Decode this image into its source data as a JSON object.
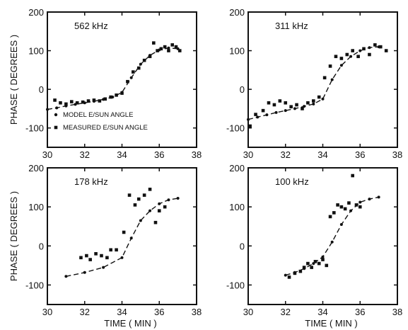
{
  "chart_data": [
    {
      "type": "scatter",
      "label": "562 kHz",
      "ylabel": "PHASE ( DEGREES )",
      "xlabel": "",
      "xlim": [
        30,
        38
      ],
      "ylim": [
        -150,
        200
      ],
      "xticks": [
        "30",
        "32",
        "34",
        "36",
        "38"
      ],
      "yticks": [
        "200",
        "100",
        "0",
        "-100"
      ],
      "legend": {
        "placement": "bottom-left",
        "entries": [
          "MODEL E/SUN ANGLE",
          "MEASURED E/SUN ANGLE"
        ]
      },
      "series": [
        {
          "name": "MODEL E/SUN ANGLE",
          "marker": "dot",
          "x": [
            30.0,
            30.5,
            31.0,
            31.5,
            32.0,
            32.5,
            33.0,
            33.5,
            34.0,
            34.5,
            35.0,
            35.5,
            36.0,
            36.5,
            37.0
          ],
          "y": [
            -52,
            -48,
            -43,
            -39,
            -35,
            -31,
            -26,
            -20,
            -8,
            30,
            65,
            88,
            102,
            107,
            105
          ]
        },
        {
          "name": "MEASURED E/SUN ANGLE",
          "marker": "square",
          "x": [
            30.4,
            30.7,
            31.0,
            31.3,
            31.6,
            31.9,
            32.2,
            32.5,
            32.8,
            33.1,
            33.4,
            33.7,
            34.0,
            34.3,
            34.6,
            34.9,
            35.2,
            35.5,
            35.7,
            35.9,
            36.1,
            36.3,
            36.5,
            36.7,
            36.9,
            37.1
          ],
          "y": [
            -28,
            -35,
            -38,
            -32,
            -35,
            -33,
            -30,
            -28,
            -30,
            -25,
            -20,
            -15,
            -10,
            20,
            45,
            55,
            75,
            85,
            120,
            100,
            105,
            110,
            100,
            115,
            110,
            100
          ]
        }
      ]
    },
    {
      "type": "scatter",
      "label": "311 kHz",
      "ylabel": "",
      "xlabel": "",
      "xlim": [
        30,
        38
      ],
      "ylim": [
        -150,
        200
      ],
      "xticks": [
        "30",
        "32",
        "34",
        "36",
        "38"
      ],
      "yticks": [
        "200",
        "100",
        "0",
        "-100"
      ],
      "series": [
        {
          "name": "MODEL E/SUN ANGLE",
          "marker": "dot",
          "x": [
            30.0,
            30.5,
            31.0,
            31.5,
            32.0,
            32.5,
            33.0,
            33.5,
            34.0,
            34.5,
            35.0,
            35.5,
            36.0,
            36.5,
            37.0
          ],
          "y": [
            -78,
            -72,
            -66,
            -60,
            -55,
            -50,
            -44,
            -38,
            -25,
            25,
            62,
            85,
            100,
            108,
            110
          ]
        },
        {
          "name": "MEASURED E/SUN ANGLE",
          "marker": "square",
          "x": [
            30.1,
            30.4,
            30.8,
            31.1,
            31.4,
            31.7,
            32.0,
            32.3,
            32.6,
            32.9,
            33.2,
            33.5,
            33.8,
            34.1,
            34.4,
            34.7,
            35.0,
            35.3,
            35.6,
            35.9,
            36.2,
            36.5,
            36.8,
            37.1,
            37.4
          ],
          "y": [
            -95,
            -65,
            -55,
            -35,
            -40,
            -30,
            -35,
            -45,
            -40,
            -50,
            -35,
            -30,
            -20,
            30,
            60,
            85,
            80,
            90,
            100,
            85,
            105,
            90,
            115,
            110,
            100
          ]
        }
      ]
    },
    {
      "type": "scatter",
      "label": "178 kHz",
      "ylabel": "PHASE ( DEGREES )",
      "xlabel": "TIME ( MIN )",
      "xlim": [
        30,
        38
      ],
      "ylim": [
        -150,
        200
      ],
      "xticks": [
        "30",
        "32",
        "34",
        "36",
        "38"
      ],
      "yticks": [
        "200",
        "100",
        "0",
        "-100"
      ],
      "series": [
        {
          "name": "MODEL E/SUN ANGLE",
          "marker": "dot",
          "x": [
            31.0,
            32.0,
            33.0,
            34.0,
            34.5,
            35.0,
            35.5,
            36.0,
            36.5,
            37.0
          ],
          "y": [
            -78,
            -68,
            -55,
            -30,
            20,
            65,
            90,
            108,
            118,
            122
          ]
        },
        {
          "name": "MEASURED E/SUN ANGLE",
          "marker": "square",
          "x": [
            31.8,
            32.1,
            32.3,
            32.6,
            32.9,
            33.2,
            33.4,
            33.7,
            34.1,
            34.4,
            34.7,
            34.9,
            35.2,
            35.5,
            35.8,
            36.0,
            36.3
          ],
          "y": [
            -30,
            -25,
            -35,
            -20,
            -25,
            -30,
            -10,
            -10,
            35,
            130,
            105,
            120,
            130,
            145,
            60,
            90,
            100
          ]
        }
      ]
    },
    {
      "type": "scatter",
      "label": "100 kHz",
      "ylabel": "",
      "xlabel": "TIME ( MIN )",
      "xlim": [
        30,
        38
      ],
      "ylim": [
        -150,
        200
      ],
      "xticks": [
        "30",
        "32",
        "34",
        "36",
        "38"
      ],
      "yticks": [
        "200",
        "100",
        "0",
        "-100"
      ],
      "series": [
        {
          "name": "MODEL E/SUN ANGLE",
          "marker": "dot",
          "x": [
            32.0,
            32.5,
            33.0,
            33.5,
            34.0,
            34.5,
            35.0,
            35.5,
            36.0,
            36.5,
            37.0
          ],
          "y": [
            -75,
            -68,
            -58,
            -45,
            -28,
            10,
            55,
            90,
            112,
            120,
            125
          ]
        },
        {
          "name": "MEASURED E/SUN ANGLE",
          "marker": "square",
          "x": [
            32.2,
            32.5,
            32.8,
            33.0,
            33.2,
            33.4,
            33.6,
            33.8,
            34.0,
            34.2,
            34.4,
            34.6,
            34.8,
            35.0,
            35.2,
            35.4,
            35.6,
            35.8,
            36.0
          ],
          "y": [
            -80,
            -70,
            -65,
            -55,
            -45,
            -55,
            -40,
            -45,
            -35,
            -50,
            75,
            85,
            105,
            100,
            95,
            110,
            180,
            105,
            100
          ]
        }
      ]
    }
  ]
}
